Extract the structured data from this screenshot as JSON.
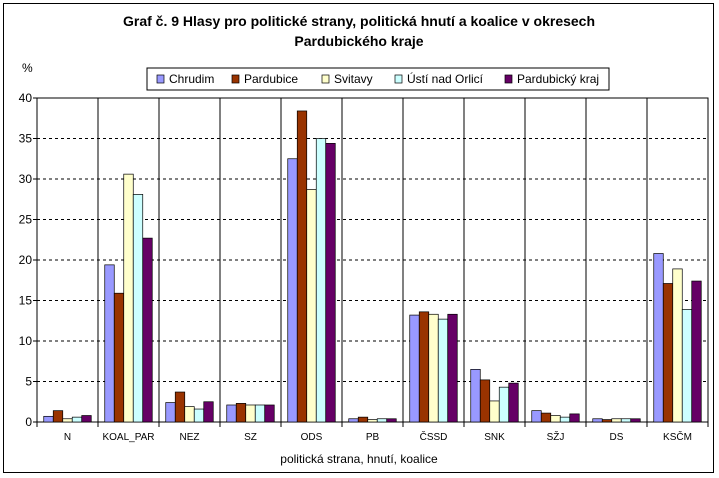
{
  "chart_data": {
    "type": "bar",
    "title_line1": "Graf č. 9 Hlasy pro politické strany, politická hnutí a koalice v okresech",
    "title_line2": "Pardubického kraje",
    "ylabel": "%",
    "xlabel": "politická strana, hnutí, koalice",
    "ylim": [
      0,
      40
    ],
    "yticks": [
      0,
      5,
      10,
      15,
      20,
      25,
      30,
      35,
      40
    ],
    "grid": true,
    "legend_position": "top",
    "categories": [
      "N",
      "KOAL_PAR",
      "NEZ",
      "SZ",
      "ODS",
      "PB",
      "ČSSD",
      "SNK",
      "SŽJ",
      "DS",
      "KSČM"
    ],
    "series": [
      {
        "name": "Chrudim",
        "color": "#9999FF",
        "values": [
          0.7,
          19.4,
          2.4,
          2.1,
          32.5,
          0.4,
          13.2,
          6.5,
          1.4,
          0.4,
          20.8
        ]
      },
      {
        "name": "Pardubice",
        "color": "#993300",
        "values": [
          1.4,
          15.9,
          3.7,
          2.3,
          38.4,
          0.6,
          13.6,
          5.2,
          1.1,
          0.3,
          17.1
        ]
      },
      {
        "name": "Svitavy",
        "color": "#FFFFCC",
        "values": [
          0.4,
          30.6,
          1.9,
          2.1,
          28.7,
          0.3,
          13.3,
          2.6,
          0.8,
          0.4,
          18.9
        ]
      },
      {
        "name": "Ústí nad Orlicí",
        "color": "#CCFFFF",
        "values": [
          0.6,
          28.1,
          1.6,
          2.1,
          35.0,
          0.4,
          12.7,
          4.3,
          0.6,
          0.4,
          13.9
        ]
      },
      {
        "name": "Pardubický kraj",
        "color": "#660066",
        "values": [
          0.8,
          22.7,
          2.5,
          2.1,
          34.4,
          0.4,
          13.3,
          4.8,
          1.0,
          0.4,
          17.4
        ]
      }
    ]
  }
}
